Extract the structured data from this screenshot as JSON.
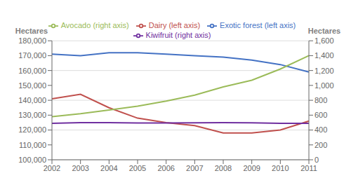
{
  "chart_data": {
    "type": "line",
    "categories": [
      "2002",
      "2003",
      "2004",
      "2005",
      "2006",
      "2007",
      "2008",
      "2009",
      "2010",
      "2011"
    ],
    "ylabel": "Hectares",
    "y2label": "Hectares",
    "ylim": [
      100000,
      180000
    ],
    "yticks": [
      {
        "value": 100000,
        "label": "100,000"
      },
      {
        "value": 110000,
        "label": "110,000"
      },
      {
        "value": 120000,
        "label": "120,000"
      },
      {
        "value": 130000,
        "label": "130,000"
      },
      {
        "value": 140000,
        "label": "140,000"
      },
      {
        "value": 150000,
        "label": "150,000"
      },
      {
        "value": 160000,
        "label": "160,000"
      },
      {
        "value": 170000,
        "label": "170,000"
      },
      {
        "value": 180000,
        "label": "180,000"
      }
    ],
    "y2lim": [
      0,
      1600
    ],
    "y2ticks": [
      0,
      200,
      400,
      600,
      800,
      {
        "value": 1000,
        "label": "1,000"
      },
      {
        "value": 1200,
        "label": "1,200"
      },
      {
        "value": 1400,
        "label": "1,400"
      },
      {
        "value": 1600,
        "label": "1,600"
      }
    ],
    "grid": true,
    "legend": "top",
    "series": [
      {
        "name": "Exotic forest (left axis)",
        "color": "#4472C4",
        "values": [
          171000,
          170000,
          172000,
          172000,
          171000,
          170000,
          169000,
          167000,
          164000,
          159000
        ]
      },
      {
        "name": "Dairy (left axis)",
        "color": "#C0504D",
        "values": [
          141000,
          144000,
          135000,
          128000,
          125000,
          123000,
          118000,
          118000,
          120000,
          126000
        ]
      },
      {
        "name": "Avocado (right axis)",
        "color": "#9BBB59",
        "axis": "y2",
        "values": [
          580,
          620,
          670,
          720,
          790,
          870,
          980,
          1070,
          1220,
          1400
        ]
      },
      {
        "name": "Kiwifruit (right axis)",
        "color": "#7030A0",
        "axis": "y2",
        "values": [
          490,
          500,
          500,
          495,
          495,
          498,
          500,
          498,
          490,
          490
        ]
      }
    ]
  }
}
